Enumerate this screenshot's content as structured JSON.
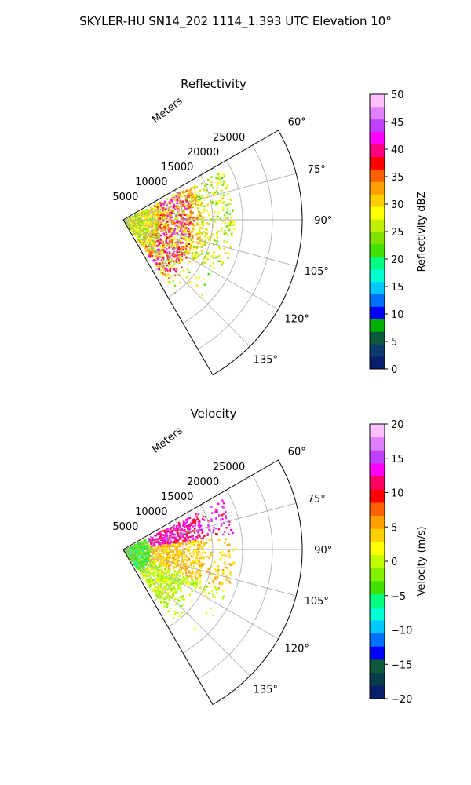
{
  "figure": {
    "title": "SKYLER-HU  SN14_202  1114_1.393 UTC Elevation 10°"
  },
  "chart_data": [
    {
      "type": "polar-sector",
      "title": "Reflectivity",
      "radial_label": "Meters",
      "angle_range_deg": [
        60,
        150
      ],
      "radial_range": [
        0,
        30000
      ],
      "radial_ticks": [
        5000,
        10000,
        15000,
        20000,
        25000
      ],
      "radial_tick_labels": [
        "5000",
        "10000",
        "15000",
        "20000",
        "25000"
      ],
      "angle_ticks": [
        60,
        75,
        90,
        105,
        120,
        135
      ],
      "angle_tick_labels": [
        "60°",
        "75°",
        "90°",
        "105°",
        "120°",
        "135°"
      ],
      "grid": true,
      "colorbar": {
        "label": "Reflectivity dBZ",
        "range": [
          0,
          50
        ],
        "ticks": [
          0,
          5,
          10,
          15,
          20,
          25,
          30,
          35,
          40,
          45,
          50
        ],
        "tick_labels": [
          "0",
          "5",
          "10",
          "15",
          "20",
          "25",
          "30",
          "35",
          "40",
          "45",
          "50"
        ],
        "colors": [
          "#08206b",
          "#0a3d6e",
          "#0c5a3a",
          "#00b000",
          "#0000ff",
          "#0070ff",
          "#00c8ff",
          "#00ffd0",
          "#00ff80",
          "#40e000",
          "#80e000",
          "#c0f000",
          "#ffff00",
          "#ffd000",
          "#ffa000",
          "#ff6000",
          "#ff0000",
          "#ff0080",
          "#ff00ff",
          "#c040ff",
          "#e080ff",
          "#ffc0ff"
        ]
      }
    },
    {
      "type": "polar-sector",
      "title": "Velocity",
      "radial_label": "Meters",
      "angle_range_deg": [
        60,
        150
      ],
      "radial_range": [
        0,
        30000
      ],
      "radial_ticks": [
        5000,
        10000,
        15000,
        20000,
        25000
      ],
      "radial_tick_labels": [
        "5000",
        "10000",
        "15000",
        "20000",
        "25000"
      ],
      "angle_ticks": [
        60,
        75,
        90,
        105,
        120,
        135
      ],
      "angle_tick_labels": [
        "60°",
        "75°",
        "90°",
        "105°",
        "120°",
        "135°"
      ],
      "grid": true,
      "colorbar": {
        "label": "Velocity (m/s)",
        "range": [
          -20,
          20
        ],
        "ticks": [
          -20,
          -15,
          -10,
          -5,
          0,
          5,
          10,
          15,
          20
        ],
        "tick_labels": [
          "−20",
          "−15",
          "−10",
          "−5",
          "0",
          "5",
          "10",
          "15",
          "20"
        ],
        "colors": [
          "#08206b",
          "#0a3d4a",
          "#0c5a3a",
          "#0000ff",
          "#0070ff",
          "#00c8ff",
          "#00ffd0",
          "#00ff80",
          "#40e000",
          "#80f000",
          "#c0ff00",
          "#ffff00",
          "#ffd000",
          "#ffa000",
          "#ff6000",
          "#ff0000",
          "#ff0060",
          "#ff00ff",
          "#c040ff",
          "#e080ff",
          "#ffc0ff"
        ]
      }
    }
  ]
}
